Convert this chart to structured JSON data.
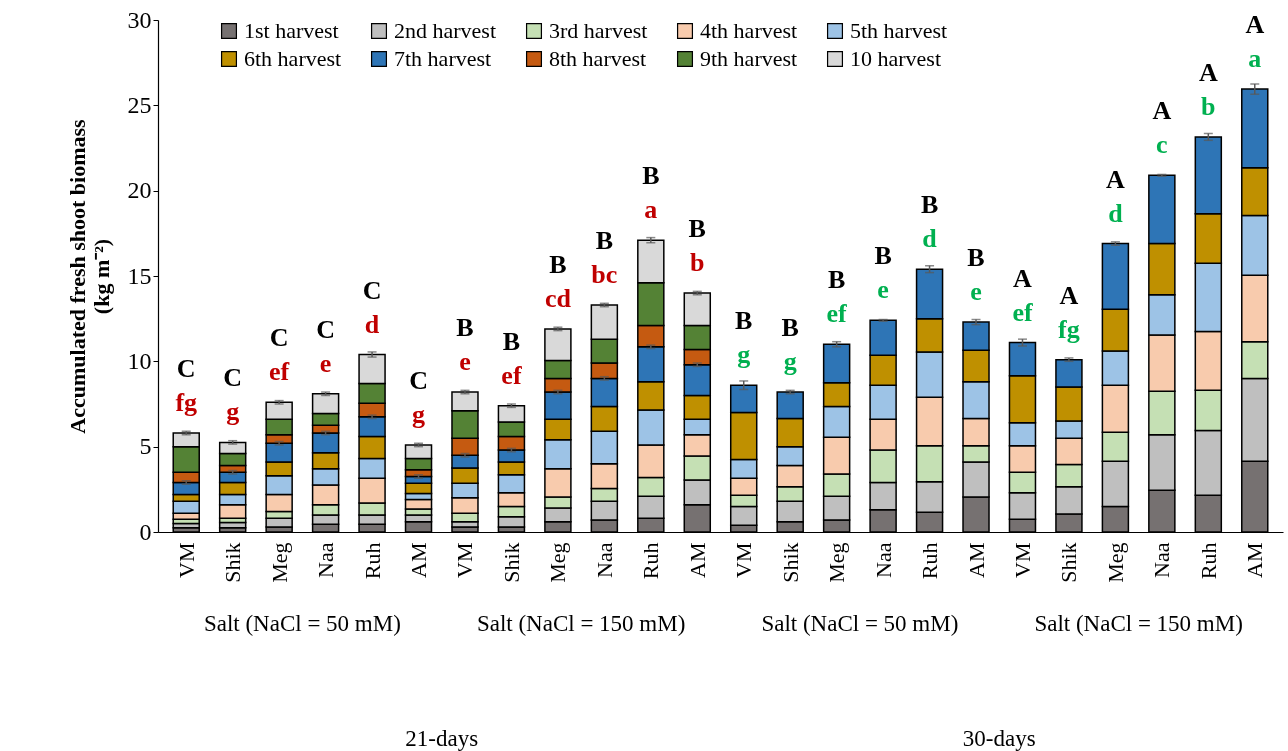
{
  "chart_data": {
    "type": "bar",
    "stacked": true,
    "ylabel": "Accumulated  fresh shoot biomass\n(kg m⁻²)",
    "categories": [
      "VM",
      "Shik",
      "Meg",
      "Naa",
      "Ruh",
      "AM",
      "VM",
      "Shik",
      "Meg",
      "Naa",
      "Ruh",
      "AM",
      "VM",
      "Shik",
      "Meg",
      "Naa",
      "Ruh",
      "AM",
      "VM",
      "Shik",
      "Meg",
      "Naa",
      "Ruh",
      "AM"
    ],
    "series": [
      {
        "name": "1st harvest",
        "color": "#767171",
        "values": [
          0.25,
          0.25,
          0.3,
          0.45,
          0.45,
          0.6,
          0.3,
          0.3,
          0.6,
          0.7,
          0.8,
          1.6,
          0.4,
          0.6,
          0.7,
          1.3,
          1.15,
          2.05,
          0.75,
          1.05,
          1.5,
          2.45,
          2.15,
          4.15
        ]
      },
      {
        "name": "2nd harvest",
        "color": "#bfbfbf",
        "values": [
          0.25,
          0.3,
          0.5,
          0.55,
          0.55,
          0.4,
          0.3,
          0.6,
          0.8,
          1.1,
          1.3,
          1.45,
          1.1,
          1.2,
          1.4,
          1.6,
          1.8,
          2.05,
          1.55,
          1.6,
          2.65,
          3.25,
          3.8,
          4.85
        ]
      },
      {
        "name": "3rd harvest",
        "color": "#c5e0b4",
        "values": [
          0.25,
          0.25,
          0.4,
          0.6,
          0.7,
          0.35,
          0.5,
          0.6,
          0.65,
          0.75,
          1.1,
          1.4,
          0.65,
          0.85,
          1.3,
          1.9,
          2.1,
          0.95,
          1.2,
          1.3,
          1.7,
          2.55,
          2.35,
          2.15
        ]
      },
      {
        "name": "4th harvest",
        "color": "#f8cbad",
        "values": [
          0.35,
          0.8,
          1.0,
          1.15,
          1.45,
          0.55,
          0.9,
          0.8,
          1.65,
          1.45,
          1.9,
          1.25,
          1.0,
          1.25,
          2.15,
          1.8,
          2.85,
          1.6,
          1.55,
          1.55,
          2.75,
          3.3,
          3.45,
          3.9
        ]
      },
      {
        "name": "5th harvest",
        "color": "#9dc3e6",
        "values": [
          0.7,
          0.6,
          1.1,
          0.95,
          1.15,
          0.35,
          0.85,
          1.05,
          1.7,
          1.9,
          2.05,
          0.9,
          1.1,
          1.1,
          1.8,
          2.0,
          2.65,
          2.15,
          1.35,
          1.0,
          2.0,
          2.35,
          4.0,
          3.5
        ]
      },
      {
        "name": "6th harvest",
        "color": "#bf9000",
        "values": [
          0.4,
          0.7,
          0.8,
          0.95,
          1.3,
          0.6,
          0.9,
          0.75,
          1.2,
          1.45,
          1.65,
          1.4,
          2.75,
          1.65,
          1.4,
          1.75,
          1.95,
          1.85,
          2.75,
          2.0,
          2.45,
          3.0,
          2.9,
          2.8
        ]
      },
      {
        "name": "7th harvest",
        "color": "#2e75b6",
        "values": [
          0.7,
          0.6,
          1.1,
          1.15,
          1.15,
          0.4,
          0.75,
          0.7,
          1.6,
          1.65,
          2.05,
          1.8,
          1.6,
          1.55,
          2.25,
          2.05,
          2.9,
          1.65,
          1.95,
          1.6,
          3.85,
          4.0,
          4.5,
          4.6
        ],
        "errors": [
          0.1,
          0.1,
          0.1,
          0.1,
          0.1,
          0.1,
          0.1,
          0.1,
          0.1,
          0.1,
          0.1,
          0.1,
          0.25,
          0.1,
          0.15,
          0.05,
          0.2,
          0.15,
          0.2,
          0.1,
          0.1,
          0.05,
          0.2,
          0.3
        ]
      },
      {
        "name": "8th harvest",
        "color": "#c55a11",
        "values": [
          0.6,
          0.4,
          0.5,
          0.45,
          0.8,
          0.4,
          1.0,
          0.8,
          0.8,
          0.9,
          1.25,
          0.9,
          null,
          null,
          null,
          null,
          null,
          null,
          null,
          null,
          null,
          null,
          null,
          null
        ]
      },
      {
        "name": "9th harvest",
        "color": "#548235",
        "values": [
          1.5,
          0.7,
          0.9,
          0.7,
          1.15,
          0.65,
          1.6,
          0.85,
          1.05,
          1.4,
          2.5,
          1.4,
          null,
          null,
          null,
          null,
          null,
          null,
          null,
          null,
          null,
          null,
          null,
          null
        ]
      },
      {
        "name": "10 harvest",
        "color": "#d9d9d9",
        "values": [
          0.8,
          0.65,
          1.0,
          1.15,
          1.7,
          0.8,
          1.1,
          0.95,
          1.85,
          2.0,
          2.5,
          1.9,
          null,
          null,
          null,
          null,
          null,
          null,
          null,
          null,
          null,
          null,
          null,
          null
        ],
        "errors": [
          0.1,
          0.1,
          0.1,
          0.1,
          0.15,
          0.1,
          0.1,
          0.1,
          0.1,
          0.1,
          0.15,
          0.1,
          null,
          null,
          null,
          null,
          null,
          null,
          null,
          null,
          null,
          null,
          null,
          null
        ]
      }
    ],
    "ylim": [
      0,
      30
    ],
    "yticks": [
      0,
      5,
      10,
      15,
      20,
      25,
      30
    ],
    "grid": false,
    "legend": "top",
    "annotations": [
      "C",
      "fg",
      "C",
      "g",
      "C",
      "ef",
      "C",
      "e",
      "C",
      "d",
      "C",
      "g",
      "B",
      "e",
      "B",
      "ef",
      "B",
      "cd",
      "B",
      "bc",
      "B",
      "a",
      "B",
      "b",
      "B",
      "g",
      "B",
      "g",
      "B",
      "ef",
      "B",
      "e",
      "B",
      "d",
      "B",
      "e",
      "A",
      "ef",
      "A",
      "fg",
      "A",
      "d",
      "A",
      "c",
      "A",
      "b",
      "A",
      "a",
      "Salt (NaCl = 50 mM)",
      "Salt (NaCl = 150 mM)",
      "Salt (NaCl = 50 mM)",
      "Salt (NaCl = 150 mM)",
      "21-days",
      "30-days"
    ]
  }
}
